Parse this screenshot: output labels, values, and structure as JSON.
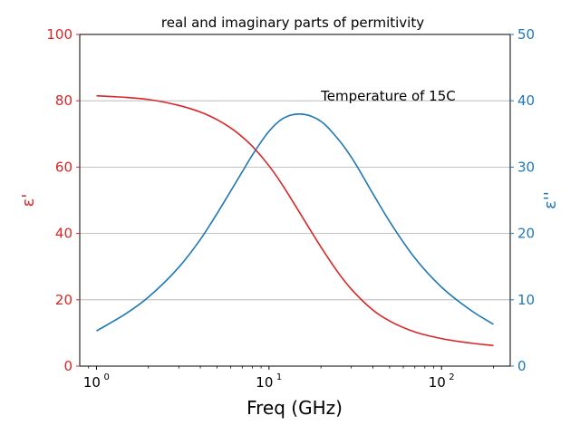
{
  "chart_data": {
    "type": "line",
    "title": "real and imaginary parts of permitivity",
    "xlabel": "Freq (GHz)",
    "ylabel_left": "ε'",
    "ylabel_right": "ε''",
    "x_scale": "log",
    "xlim": [
      0.8,
      250
    ],
    "ylim_left": [
      0,
      100
    ],
    "ylim_right": [
      0,
      50
    ],
    "x_ticks": [
      {
        "value": 1,
        "base": "10",
        "exp": "0"
      },
      {
        "value": 10,
        "base": "10",
        "exp": "1"
      },
      {
        "value": 100,
        "base": "10",
        "exp": "2"
      }
    ],
    "y_ticks_left": [
      0,
      20,
      40,
      60,
      80,
      100
    ],
    "y_ticks_right": [
      0,
      10,
      20,
      30,
      40,
      50
    ],
    "grid": "horizontal",
    "annotation": {
      "text": "Temperature of 15C",
      "x": 20,
      "y_right": 40
    },
    "colors": {
      "left": "#d62728",
      "right": "#1f77b4"
    },
    "series": [
      {
        "axis": "left",
        "color": "#d62728",
        "x": [
          1,
          1.5,
          2,
          3,
          4,
          5,
          6,
          7,
          8,
          10,
          12,
          15,
          20,
          25,
          30,
          40,
          50,
          70,
          100,
          150,
          200
        ],
        "values": [
          81.5,
          81.0,
          80.4,
          78.6,
          76.6,
          74.3,
          71.8,
          69.1,
          66.3,
          60.4,
          54.5,
          46.4,
          35.9,
          28.4,
          23.2,
          16.9,
          13.6,
          10.3,
          8.3,
          6.9,
          6.2
        ]
      },
      {
        "axis": "right",
        "color": "#1f77b4",
        "x": [
          1,
          1.5,
          2,
          3,
          4,
          5,
          6,
          7,
          8,
          10,
          12,
          15,
          20,
          25,
          30,
          40,
          50,
          70,
          100,
          150,
          200
        ],
        "values": [
          5.3,
          8.0,
          10.4,
          14.9,
          19.1,
          23.0,
          26.4,
          29.3,
          31.8,
          35.4,
          37.3,
          38.0,
          36.9,
          34.3,
          31.5,
          26.0,
          21.8,
          16.3,
          11.9,
          8.3,
          6.3
        ]
      }
    ]
  }
}
